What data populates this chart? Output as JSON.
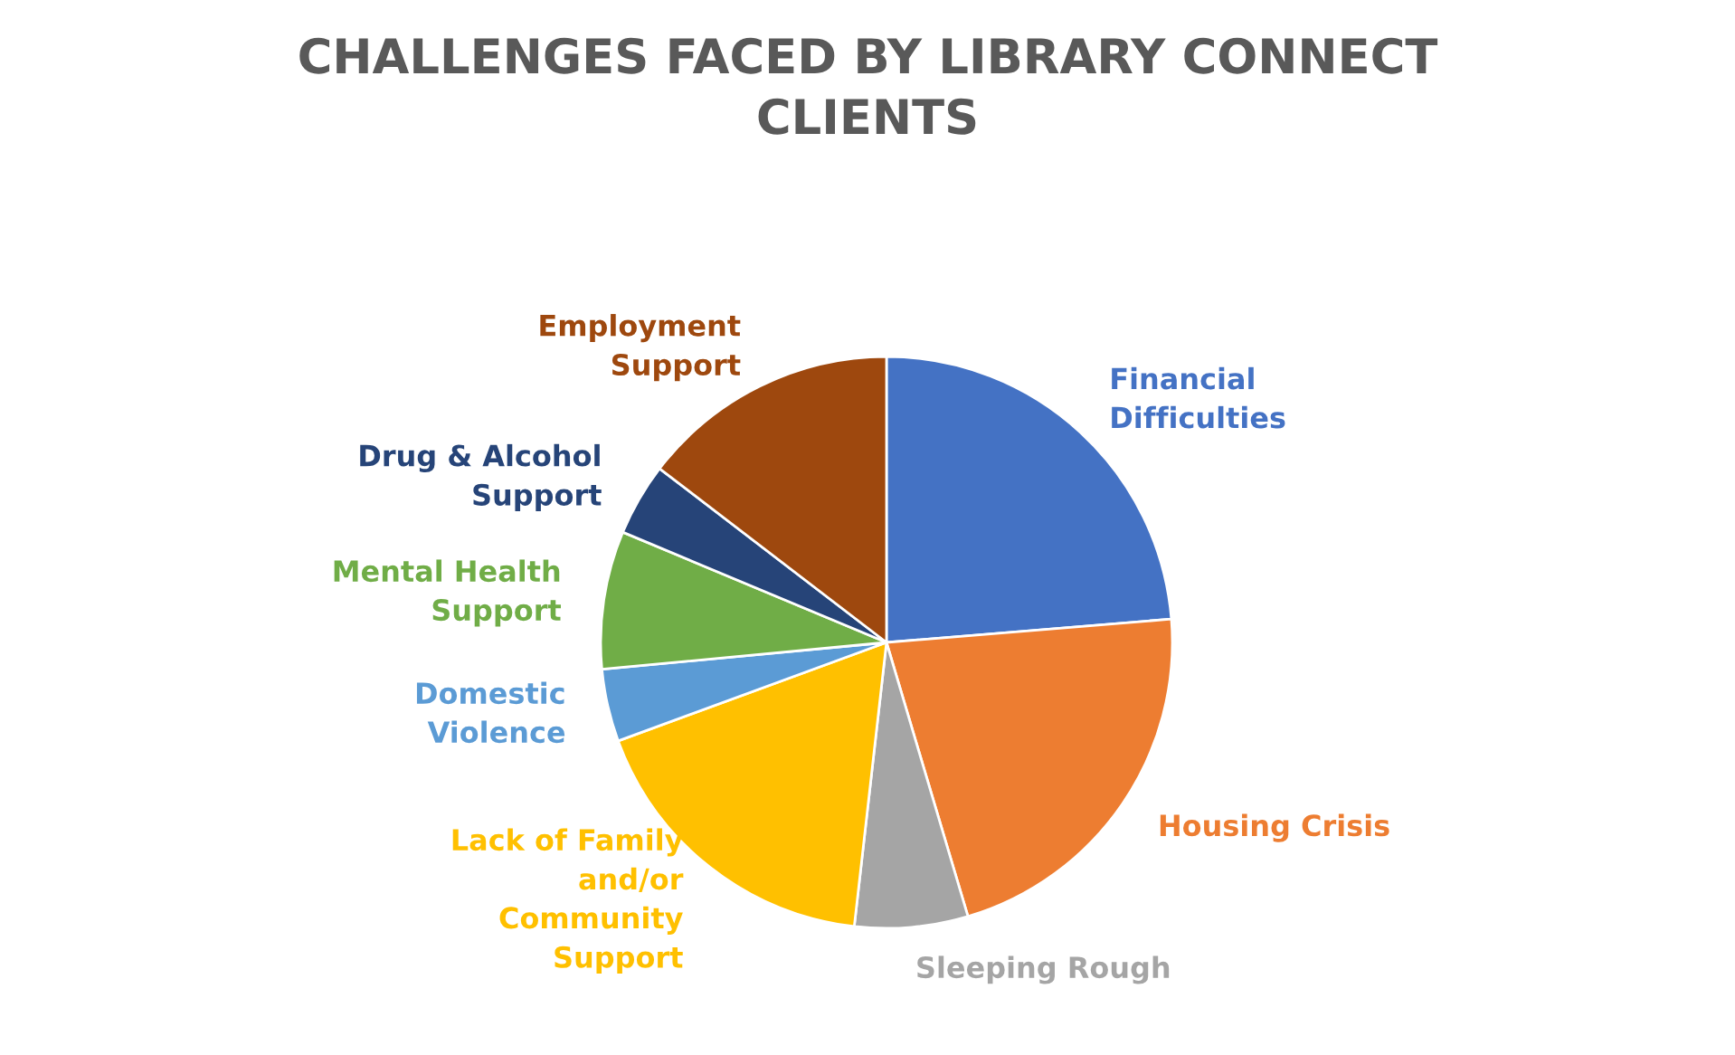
{
  "chart_data": {
    "type": "pie",
    "title": "CHALLENGES FACED BY LIBRARY CONNECT\nCLIENTS",
    "categories": [
      "Financial\nDifficulties",
      "Housing Crisis",
      "Sleeping Rough",
      "Lack of Family\nand/or\nCommunity\nSupport",
      "Domestic\nViolence",
      "Mental Health\nSupport",
      "Drug & Alcohol\nSupport",
      "Employment\nSupport"
    ],
    "values": [
      23.7,
      21.7,
      6.4,
      17.6,
      4.1,
      7.8,
      4.1,
      14.6
    ],
    "colors": [
      "#4472c4",
      "#ed7d31",
      "#a5a5a5",
      "#ffc000",
      "#5b9bd5",
      "#70ad47",
      "#264478",
      "#9e480e"
    ]
  }
}
